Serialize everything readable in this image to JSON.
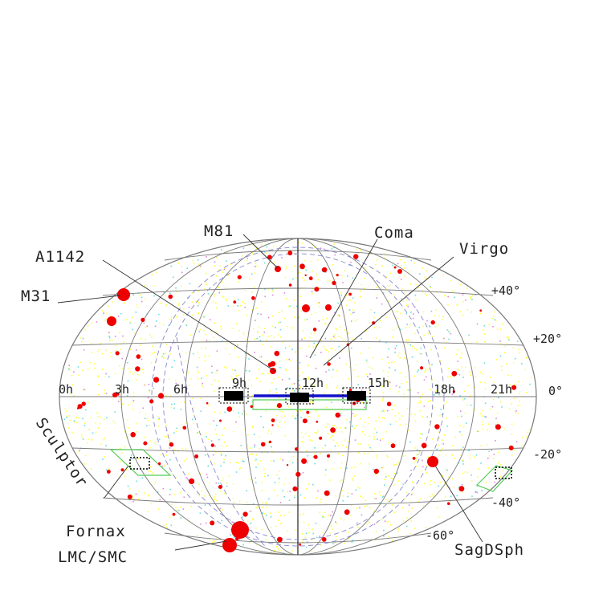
{
  "labels": {
    "ra_ticks": [
      "0h",
      "3h",
      "6h",
      "9h",
      "12h",
      "15h",
      "18h",
      "21h"
    ],
    "dec_ticks": [
      "+40°",
      "+20°",
      "0°",
      "-20°",
      "-40°",
      "-60°"
    ],
    "objects": [
      "M81",
      "Coma",
      "Virgo",
      "A1142",
      "M31",
      "Sculptor",
      "Fornax",
      "LMC/SMC",
      "SagDSph"
    ]
  },
  "colors": {
    "grid": "#7a7a7a",
    "galaxy_markers": "#ee0000",
    "strip": "#1111cc",
    "fields": "#000000",
    "background_points": [
      "#ffff40",
      "#66dddd",
      "#dd88dd"
    ]
  }
}
